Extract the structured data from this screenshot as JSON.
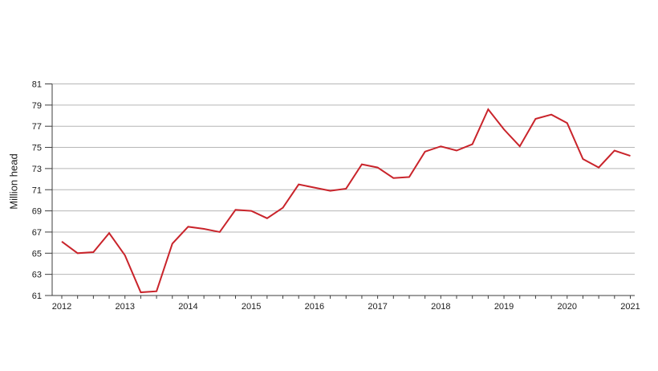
{
  "page": {
    "background": "#ffffff"
  },
  "chart_data": {
    "type": "line",
    "title": "",
    "xlabel": "",
    "ylabel": "Million head",
    "x_tick_labels": [
      "2012",
      "2013",
      "2014",
      "2015",
      "2016",
      "2017",
      "2018",
      "2019",
      "2020",
      "2021"
    ],
    "points_per_x_label": 4,
    "x_unit": "quarter",
    "ylim": [
      61,
      81
    ],
    "y_ticks": [
      61,
      63,
      65,
      67,
      69,
      71,
      73,
      75,
      77,
      79,
      81
    ],
    "grid": true,
    "legend": false,
    "colors": {
      "line": "#c9242b",
      "grid": "#b6b6b6",
      "axis": "#3d3d3d",
      "text": "#1c1c1c"
    },
    "series": [
      {
        "values": [
          66.1,
          65.0,
          65.1,
          66.9,
          64.8,
          61.3,
          61.4,
          65.9,
          67.5,
          67.3,
          67.0,
          69.1,
          69.0,
          68.3,
          69.3,
          71.5,
          71.2,
          70.9,
          71.1,
          73.4,
          73.1,
          72.1,
          72.2,
          74.6,
          75.1,
          74.7,
          75.3,
          78.6,
          76.7,
          75.1,
          77.7,
          78.1,
          77.3,
          73.9,
          73.1,
          74.7,
          74.2
        ]
      }
    ]
  }
}
